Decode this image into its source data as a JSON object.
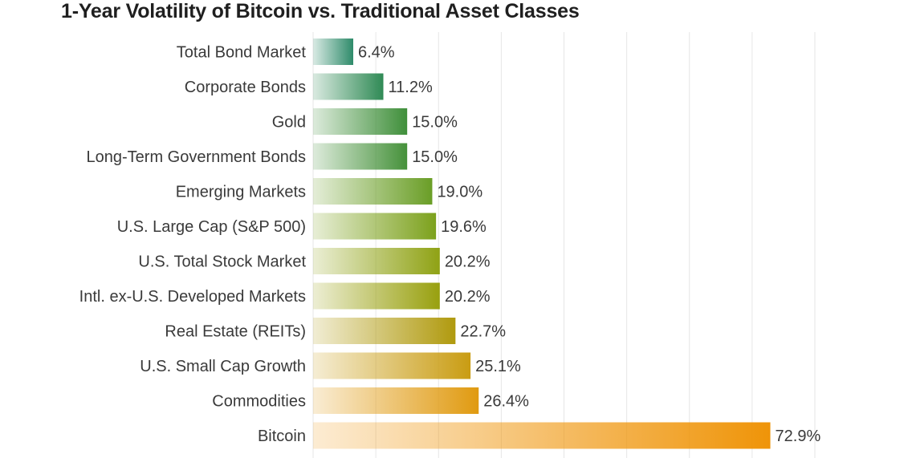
{
  "chart_data": {
    "type": "bar",
    "orientation": "horizontal",
    "title": "1-Year Volatility of Bitcoin vs. Traditional Asset Classes",
    "xlabel": "",
    "ylabel": "",
    "xlim": [
      0,
      80
    ],
    "grid": true,
    "legend": "none",
    "categories": [
      "Total Bond Market",
      "Corporate Bonds",
      "Gold",
      "Long-Term Government Bonds",
      "Emerging Markets",
      "U.S. Large Cap (S&P 500)",
      "U.S. Total Stock Market",
      "Intl. ex-U.S. Developed Markets",
      "Real Estate (REITs)",
      "U.S. Small Cap Growth",
      "Commodities",
      "Bitcoin"
    ],
    "values": [
      6.4,
      11.2,
      15.0,
      15.0,
      19.0,
      19.6,
      20.2,
      20.2,
      22.7,
      25.1,
      26.4,
      72.9
    ],
    "value_labels": [
      "6.4%",
      "11.2%",
      "15.0%",
      "15.0%",
      "19.0%",
      "19.6%",
      "20.2%",
      "20.2%",
      "22.7%",
      "25.1%",
      "26.4%",
      "72.9%"
    ],
    "bar_colors": [
      "#2e8b6a",
      "#2f8a55",
      "#3f8f3a",
      "#45913a",
      "#6a9e26",
      "#7ca11c",
      "#8fa214",
      "#98a00e",
      "#b09a0e",
      "#c99c12",
      "#e09a10",
      "#ef9408"
    ]
  }
}
